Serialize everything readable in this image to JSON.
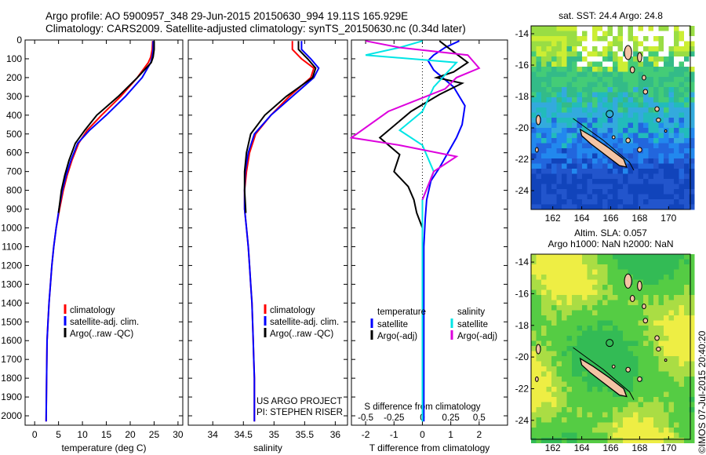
{
  "header": {
    "line1": "Argo profile: AO 5900957_348 29-Jun-2015 20150630_994 19.11S 165.929E",
    "line2": "Climatology: CARS2009. Satellite-adjusted climatology: synTS_20150630.nc (0.34d later)"
  },
  "credit": "©IMOS 07-Jul-2015 20:40:20",
  "colors": {
    "climatology": "#ff0000",
    "satellite": "#0000ff",
    "argo": "#000000",
    "satellite_salinity": "#00e5e5",
    "argo_salinity": "#dd00dd",
    "land": "#f4c4a4"
  },
  "chart_data": [
    {
      "type": "line",
      "xlabel": "temperature (deg C)",
      "ylabel": "",
      "xlim": [
        -2,
        31
      ],
      "ylim": [
        2050,
        0
      ],
      "xticks": [
        0,
        5,
        10,
        15,
        20,
        25,
        30
      ],
      "yticks": [
        0,
        100,
        200,
        300,
        400,
        500,
        600,
        700,
        800,
        900,
        1000,
        1100,
        1200,
        1300,
        1400,
        1500,
        1600,
        1700,
        1800,
        1900,
        2000
      ],
      "legend": [
        "climatology",
        "satellite-adj. clim.",
        "Argo(..raw -QC)"
      ],
      "series": [
        {
          "name": "climatology",
          "color": "#ff0000",
          "x": [
            24.7,
            24.6,
            24.3,
            23.8,
            21.5,
            18,
            14,
            11,
            9.2,
            7.8,
            6.8,
            6,
            5.2,
            4.5,
            4,
            3.6,
            3.3,
            3,
            2.8,
            2.6,
            2.5,
            2.4
          ],
          "y": [
            5,
            50,
            90,
            120,
            200,
            300,
            400,
            480,
            550,
            640,
            720,
            800,
            900,
            1000,
            1100,
            1200,
            1300,
            1400,
            1500,
            1600,
            1800,
            2030
          ]
        },
        {
          "name": "satellite-adj. clim.",
          "color": "#0000ff",
          "x": [
            24.8,
            24.8,
            24.6,
            24.3,
            22.5,
            19,
            15,
            11.5,
            9,
            7.6,
            6.6,
            5.8,
            5.1,
            4.5,
            4,
            3.6,
            3.3,
            3,
            2.8,
            2.6,
            2.5,
            2.4
          ],
          "y": [
            5,
            50,
            90,
            120,
            200,
            300,
            400,
            480,
            550,
            640,
            720,
            800,
            900,
            1000,
            1100,
            1200,
            1300,
            1400,
            1500,
            1600,
            1800,
            2030
          ]
        },
        {
          "name": "Argo(..raw -QC)",
          "color": "#000000",
          "x": [
            25,
            25,
            24.8,
            24.4,
            21.5,
            17.5,
            13,
            10.5,
            8.5,
            7.2,
            6.3,
            5.6,
            5
          ],
          "y": [
            5,
            50,
            90,
            120,
            200,
            300,
            400,
            480,
            550,
            640,
            720,
            800,
            920
          ]
        }
      ]
    },
    {
      "type": "line",
      "xlabel": "salinity",
      "ylabel": "",
      "xlim": [
        33.6,
        36.2
      ],
      "ylim": [
        2050,
        0
      ],
      "xticks": [
        34,
        34.5,
        35,
        35.5,
        36
      ],
      "legend": [
        "climatology",
        "satellite-adj. clim.",
        "Argo(..raw -QC)"
      ],
      "annotations": [
        "US ARGO PROJECT",
        "PI: STEPHEN RISER"
      ],
      "series": [
        {
          "name": "climatology",
          "color": "#ff0000",
          "x": [
            35.3,
            35.3,
            35.45,
            35.65,
            35.6,
            35.25,
            34.95,
            34.7,
            34.6,
            34.55,
            34.52,
            34.52,
            34.55,
            34.58,
            34.6,
            34.62,
            34.64,
            34.65,
            34.66,
            34.67,
            34.68,
            34.68
          ],
          "y": [
            5,
            50,
            100,
            150,
            200,
            300,
            400,
            500,
            600,
            700,
            800,
            900,
            1000,
            1100,
            1200,
            1300,
            1400,
            1500,
            1600,
            1700,
            1800,
            2030
          ]
        },
        {
          "name": "satellite-adj. clim.",
          "color": "#0000ff",
          "x": [
            35.45,
            35.45,
            35.6,
            35.73,
            35.65,
            35.3,
            34.95,
            34.68,
            34.58,
            34.53,
            34.52,
            34.52,
            34.55,
            34.58,
            34.6,
            34.62,
            34.64,
            34.65,
            34.66,
            34.67,
            34.68,
            34.68
          ],
          "y": [
            5,
            50,
            100,
            150,
            200,
            300,
            400,
            500,
            600,
            700,
            800,
            900,
            1000,
            1100,
            1200,
            1300,
            1400,
            1500,
            1600,
            1700,
            1800,
            2030
          ]
        },
        {
          "name": "Argo(..raw -QC)",
          "color": "#000000",
          "x": [
            35.4,
            35.4,
            35.55,
            35.68,
            35.63,
            35.2,
            34.85,
            34.62,
            34.55,
            34.52,
            34.52,
            34.54
          ],
          "y": [
            5,
            50,
            100,
            150,
            200,
            300,
            400,
            500,
            600,
            700,
            800,
            920
          ]
        }
      ]
    },
    {
      "type": "line",
      "xlabel": "T difference from climatology",
      "x2label": "S difference from climatology",
      "xlim": [
        -2.5,
        3
      ],
      "x2lim": [
        -0.625,
        0.75
      ],
      "ylim": [
        2050,
        0
      ],
      "xticks": [
        -2,
        -1,
        0,
        1,
        2
      ],
      "x2ticks": [
        -0.5,
        -0.25,
        0,
        0.25,
        0.5
      ],
      "legend_groups": [
        {
          "title": "temperature",
          "items": [
            "satellite",
            "Argo(-adj)"
          ]
        },
        {
          "title": "salinity",
          "items": [
            "satellite",
            "Argo(-adj)"
          ]
        }
      ],
      "series": [
        {
          "name": "satellite",
          "group": "temperature",
          "color": "#0000ff",
          "x": [
            1.3,
            0.8,
            0.4,
            0.2,
            0.4,
            1.1,
            1.5,
            1.4,
            1.2,
            0.9,
            0.6,
            0.3,
            0.15,
            0.1,
            0.05,
            0.05,
            0.05,
            0.05,
            0.05,
            0.05,
            0.05
          ],
          "y": [
            5,
            40,
            80,
            110,
            160,
            250,
            350,
            450,
            520,
            600,
            680,
            750,
            850,
            950,
            1100,
            1300,
            1500,
            1700,
            1850,
            1950,
            2030
          ]
        },
        {
          "name": "Argo(-adj)",
          "group": "temperature",
          "color": "#000000",
          "x": [
            0.6,
            0.9,
            1.6,
            1.1,
            0.5,
            1.4,
            0.6,
            -0.4,
            -1.5,
            -0.8,
            -1.0,
            -0.5,
            -0.3,
            -0.2,
            0.0
          ],
          "y": [
            5,
            40,
            120,
            170,
            200,
            230,
            290,
            380,
            520,
            610,
            700,
            780,
            850,
            920,
            1000
          ]
        },
        {
          "name": "satellite",
          "group": "salinity",
          "color": "#00e5e5",
          "x": [
            0.0,
            -0.2,
            -0.5,
            0.3,
            0.1,
            0,
            -0.2,
            0,
            0.1,
            0,
            0,
            0,
            0,
            0,
            0
          ],
          "y": [
            5,
            40,
            80,
            120,
            250,
            380,
            480,
            560,
            700,
            850,
            1000,
            1300,
            1600,
            1850,
            2030
          ]
        },
        {
          "name": "Argo(-adj)",
          "group": "salinity",
          "color": "#dd00dd",
          "x": [
            -0.5,
            -0.2,
            0.4,
            0.5,
            0.3,
            0.2,
            -0.3,
            -0.8,
            -0.2,
            0.3,
            0.1,
            0
          ],
          "y": [
            5,
            40,
            80,
            150,
            200,
            260,
            380,
            520,
            560,
            620,
            700,
            850
          ]
        }
      ]
    }
  ],
  "maps": {
    "top": {
      "title": "sat. SST: 24.4 Argo: 24.8",
      "xticks": [
        162,
        164,
        166,
        168,
        170
      ],
      "yticks": [
        -14,
        -16,
        -18,
        -20,
        -22,
        -24
      ]
    },
    "bottom": {
      "title_line1": "Altim. SLA: 0.057",
      "title_line2": "Argo h1000: NaN h2000: NaN",
      "xticks": [
        162,
        164,
        166,
        168,
        170
      ],
      "yticks": [
        -14,
        -16,
        -18,
        -20,
        -22,
        -24
      ]
    }
  },
  "argo_position": {
    "lon": 165.929,
    "lat": -19.11
  }
}
